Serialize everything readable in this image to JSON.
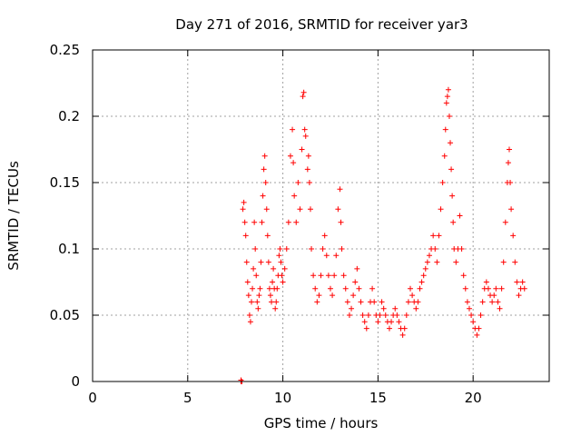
{
  "chart_data": {
    "type": "scatter",
    "title": "Day 271 of 2016, SRMTID for receiver yar3",
    "xlabel": "GPS time / hours",
    "ylabel": "SRMTID / TECUs",
    "xlim": [
      0,
      24
    ],
    "ylim": [
      0,
      0.25
    ],
    "x_ticks": [
      0,
      5,
      10,
      15,
      20
    ],
    "x_tick_labels": [
      "0",
      "5",
      "10",
      "15",
      "20"
    ],
    "y_ticks": [
      0,
      0.05,
      0.1,
      0.15,
      0.2,
      0.25
    ],
    "y_tick_labels": [
      "0",
      "0.05",
      "0.1",
      "0.15",
      "0.2",
      "0.25"
    ],
    "grid": true,
    "marker": "+",
    "color": "#ff0000",
    "data_range_hours": [
      7.8,
      22.7
    ],
    "series": [
      {
        "name": "SRMTID",
        "points": [
          [
            7.8,
            0.0
          ],
          [
            7.8,
            0.0
          ],
          [
            7.8,
            0.001
          ],
          [
            7.85,
            0.0
          ],
          [
            7.9,
            0.13
          ],
          [
            7.95,
            0.135
          ],
          [
            8.0,
            0.12
          ],
          [
            8.05,
            0.11
          ],
          [
            8.1,
            0.09
          ],
          [
            8.15,
            0.075
          ],
          [
            8.2,
            0.065
          ],
          [
            8.25,
            0.05
          ],
          [
            8.3,
            0.045
          ],
          [
            8.35,
            0.06
          ],
          [
            8.4,
            0.07
          ],
          [
            8.45,
            0.085
          ],
          [
            8.5,
            0.12
          ],
          [
            8.55,
            0.1
          ],
          [
            8.6,
            0.08
          ],
          [
            8.65,
            0.06
          ],
          [
            8.7,
            0.055
          ],
          [
            8.75,
            0.065
          ],
          [
            8.8,
            0.07
          ],
          [
            8.85,
            0.09
          ],
          [
            8.9,
            0.12
          ],
          [
            8.95,
            0.14
          ],
          [
            9.0,
            0.16
          ],
          [
            9.05,
            0.17
          ],
          [
            9.1,
            0.15
          ],
          [
            9.15,
            0.13
          ],
          [
            9.2,
            0.11
          ],
          [
            9.25,
            0.09
          ],
          [
            9.3,
            0.07
          ],
          [
            9.35,
            0.065
          ],
          [
            9.4,
            0.06
          ],
          [
            9.45,
            0.075
          ],
          [
            9.5,
            0.085
          ],
          [
            9.55,
            0.07
          ],
          [
            9.6,
            0.055
          ],
          [
            9.65,
            0.06
          ],
          [
            9.7,
            0.07
          ],
          [
            9.75,
            0.08
          ],
          [
            9.8,
            0.095
          ],
          [
            9.85,
            0.1
          ],
          [
            9.9,
            0.09
          ],
          [
            9.95,
            0.08
          ],
          [
            10.0,
            0.075
          ],
          [
            10.1,
            0.085
          ],
          [
            10.2,
            0.1
          ],
          [
            10.3,
            0.12
          ],
          [
            10.4,
            0.17
          ],
          [
            10.5,
            0.19
          ],
          [
            10.55,
            0.165
          ],
          [
            10.6,
            0.14
          ],
          [
            10.7,
            0.12
          ],
          [
            10.8,
            0.15
          ],
          [
            10.9,
            0.13
          ],
          [
            11.0,
            0.175
          ],
          [
            11.05,
            0.215
          ],
          [
            11.1,
            0.218
          ],
          [
            11.15,
            0.19
          ],
          [
            11.2,
            0.185
          ],
          [
            11.3,
            0.16
          ],
          [
            11.35,
            0.17
          ],
          [
            11.4,
            0.15
          ],
          [
            11.45,
            0.13
          ],
          [
            11.5,
            0.1
          ],
          [
            11.6,
            0.08
          ],
          [
            11.7,
            0.07
          ],
          [
            11.8,
            0.06
          ],
          [
            11.9,
            0.065
          ],
          [
            12.0,
            0.08
          ],
          [
            12.1,
            0.1
          ],
          [
            12.2,
            0.11
          ],
          [
            12.3,
            0.095
          ],
          [
            12.4,
            0.08
          ],
          [
            12.5,
            0.07
          ],
          [
            12.6,
            0.065
          ],
          [
            12.7,
            0.08
          ],
          [
            12.8,
            0.095
          ],
          [
            12.9,
            0.13
          ],
          [
            13.0,
            0.145
          ],
          [
            13.05,
            0.12
          ],
          [
            13.1,
            0.1
          ],
          [
            13.2,
            0.08
          ],
          [
            13.3,
            0.07
          ],
          [
            13.4,
            0.06
          ],
          [
            13.5,
            0.05
          ],
          [
            13.6,
            0.055
          ],
          [
            13.7,
            0.065
          ],
          [
            13.8,
            0.075
          ],
          [
            13.9,
            0.085
          ],
          [
            14.0,
            0.07
          ],
          [
            14.1,
            0.06
          ],
          [
            14.2,
            0.05
          ],
          [
            14.3,
            0.045
          ],
          [
            14.4,
            0.04
          ],
          [
            14.5,
            0.05
          ],
          [
            14.6,
            0.06
          ],
          [
            14.7,
            0.07
          ],
          [
            14.8,
            0.06
          ],
          [
            14.9,
            0.05
          ],
          [
            15.0,
            0.045
          ],
          [
            15.1,
            0.05
          ],
          [
            15.2,
            0.06
          ],
          [
            15.3,
            0.055
          ],
          [
            15.4,
            0.05
          ],
          [
            15.5,
            0.045
          ],
          [
            15.6,
            0.04
          ],
          [
            15.7,
            0.045
          ],
          [
            15.8,
            0.05
          ],
          [
            15.9,
            0.055
          ],
          [
            16.0,
            0.05
          ],
          [
            16.1,
            0.045
          ],
          [
            16.2,
            0.04
          ],
          [
            16.3,
            0.035
          ],
          [
            16.4,
            0.04
          ],
          [
            16.5,
            0.05
          ],
          [
            16.6,
            0.06
          ],
          [
            16.7,
            0.07
          ],
          [
            16.8,
            0.065
          ],
          [
            16.9,
            0.06
          ],
          [
            17.0,
            0.055
          ],
          [
            17.1,
            0.06
          ],
          [
            17.2,
            0.07
          ],
          [
            17.3,
            0.075
          ],
          [
            17.4,
            0.08
          ],
          [
            17.5,
            0.085
          ],
          [
            17.6,
            0.09
          ],
          [
            17.7,
            0.095
          ],
          [
            17.8,
            0.1
          ],
          [
            17.9,
            0.11
          ],
          [
            18.0,
            0.1
          ],
          [
            18.1,
            0.09
          ],
          [
            18.2,
            0.11
          ],
          [
            18.3,
            0.13
          ],
          [
            18.4,
            0.15
          ],
          [
            18.5,
            0.17
          ],
          [
            18.55,
            0.19
          ],
          [
            18.6,
            0.21
          ],
          [
            18.65,
            0.215
          ],
          [
            18.7,
            0.22
          ],
          [
            18.75,
            0.2
          ],
          [
            18.8,
            0.18
          ],
          [
            18.85,
            0.16
          ],
          [
            18.9,
            0.14
          ],
          [
            18.95,
            0.12
          ],
          [
            19.0,
            0.1
          ],
          [
            19.1,
            0.09
          ],
          [
            19.2,
            0.1
          ],
          [
            19.3,
            0.125
          ],
          [
            19.4,
            0.1
          ],
          [
            19.5,
            0.08
          ],
          [
            19.6,
            0.07
          ],
          [
            19.7,
            0.06
          ],
          [
            19.8,
            0.055
          ],
          [
            19.9,
            0.05
          ],
          [
            20.0,
            0.045
          ],
          [
            20.1,
            0.04
          ],
          [
            20.2,
            0.035
          ],
          [
            20.3,
            0.04
          ],
          [
            20.4,
            0.05
          ],
          [
            20.5,
            0.06
          ],
          [
            20.6,
            0.07
          ],
          [
            20.7,
            0.075
          ],
          [
            20.8,
            0.07
          ],
          [
            20.9,
            0.065
          ],
          [
            21.0,
            0.06
          ],
          [
            21.1,
            0.065
          ],
          [
            21.2,
            0.07
          ],
          [
            21.3,
            0.06
          ],
          [
            21.4,
            0.055
          ],
          [
            21.5,
            0.07
          ],
          [
            21.6,
            0.09
          ],
          [
            21.7,
            0.12
          ],
          [
            21.8,
            0.15
          ],
          [
            21.85,
            0.165
          ],
          [
            21.9,
            0.175
          ],
          [
            21.95,
            0.15
          ],
          [
            22.0,
            0.13
          ],
          [
            22.1,
            0.11
          ],
          [
            22.2,
            0.09
          ],
          [
            22.3,
            0.075
          ],
          [
            22.4,
            0.065
          ],
          [
            22.5,
            0.07
          ],
          [
            22.6,
            0.075
          ],
          [
            22.7,
            0.07
          ]
        ]
      }
    ]
  }
}
